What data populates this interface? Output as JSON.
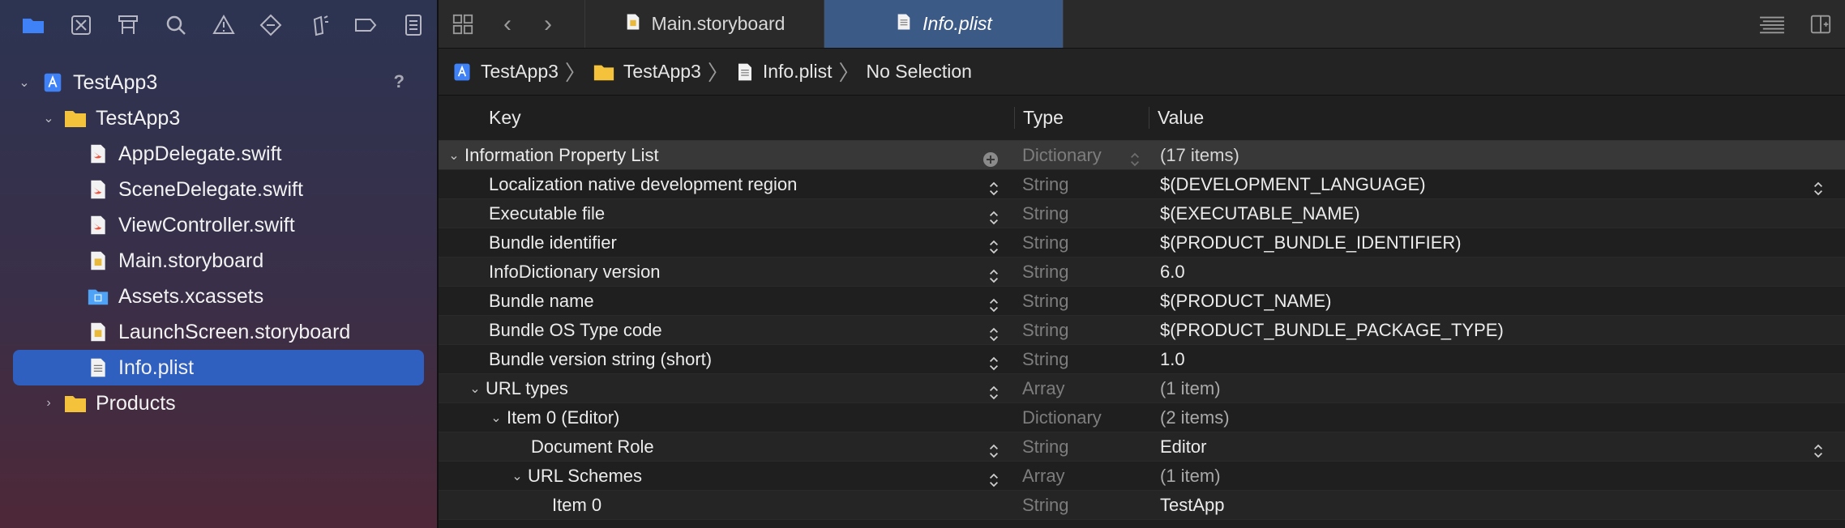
{
  "navigator": {
    "toolbar_icons": [
      "folder-icon",
      "source-control-icon",
      "hierarchy-icon",
      "search-icon",
      "warning-icon",
      "test-icon",
      "debug-icon",
      "breakpoint-icon",
      "report-icon"
    ],
    "help": "?",
    "tree": [
      {
        "label": "TestApp3",
        "icon": "project-icon",
        "level": 0,
        "expanded": true
      },
      {
        "label": "TestApp3",
        "icon": "folder-icon",
        "level": 1,
        "expanded": true
      },
      {
        "label": "AppDelegate.swift",
        "icon": "swift-file-icon",
        "level": 2
      },
      {
        "label": "SceneDelegate.swift",
        "icon": "swift-file-icon",
        "level": 2
      },
      {
        "label": "ViewController.swift",
        "icon": "swift-file-icon",
        "level": 2
      },
      {
        "label": "Main.storyboard",
        "icon": "storyboard-file-icon",
        "level": 2
      },
      {
        "label": "Assets.xcassets",
        "icon": "assets-folder-icon",
        "level": 2
      },
      {
        "label": "LaunchScreen.storyboard",
        "icon": "storyboard-file-icon",
        "level": 2
      },
      {
        "label": "Info.plist",
        "icon": "plist-file-icon",
        "level": 2,
        "selected": true
      },
      {
        "label": "Products",
        "icon": "folder-icon",
        "level": 1,
        "expanded": false
      }
    ]
  },
  "tabs": [
    {
      "label": "Main.storyboard",
      "icon": "storyboard-file-icon",
      "active": false
    },
    {
      "label": "Info.plist",
      "icon": "plist-file-icon",
      "active": true
    }
  ],
  "jumpbar": {
    "crumbs": [
      {
        "label": "TestApp3",
        "icon": "project-icon"
      },
      {
        "label": "TestApp3",
        "icon": "folder-icon"
      },
      {
        "label": "Info.plist",
        "icon": "plist-file-icon"
      },
      {
        "label": "No Selection",
        "icon": ""
      }
    ]
  },
  "plist": {
    "headers": {
      "key": "Key",
      "type": "Type",
      "value": "Value"
    },
    "rows": [
      {
        "key": "Information Property List",
        "type": "Dictionary",
        "value": "(17 items)",
        "level": 0,
        "chev": "down",
        "root": true
      },
      {
        "key": "Localization native development region",
        "type": "String",
        "value": "$(DEVELOPMENT_LANGUAGE)",
        "level": 1,
        "valstepper": true
      },
      {
        "key": "Executable file",
        "type": "String",
        "value": "$(EXECUTABLE_NAME)",
        "level": 1
      },
      {
        "key": "Bundle identifier",
        "type": "String",
        "value": "$(PRODUCT_BUNDLE_IDENTIFIER)",
        "level": 1
      },
      {
        "key": "InfoDictionary version",
        "type": "String",
        "value": "6.0",
        "level": 1
      },
      {
        "key": "Bundle name",
        "type": "String",
        "value": "$(PRODUCT_NAME)",
        "level": 1
      },
      {
        "key": "Bundle OS Type code",
        "type": "String",
        "value": "$(PRODUCT_BUNDLE_PACKAGE_TYPE)",
        "level": 1
      },
      {
        "key": "Bundle version string (short)",
        "type": "String",
        "value": "1.0",
        "level": 1
      },
      {
        "key": "URL types",
        "type": "Array",
        "value": "(1 item)",
        "level": 1,
        "chev": "down",
        "muted": true
      },
      {
        "key": "Item 0 (Editor)",
        "type": "Dictionary",
        "value": "(2 items)",
        "level": 2,
        "chev": "down",
        "muted": true,
        "nostepper": true
      },
      {
        "key": "Document Role",
        "type": "String",
        "value": "Editor",
        "level": 3,
        "valstepper": true
      },
      {
        "key": "URL Schemes",
        "type": "Array",
        "value": "(1 item)",
        "level": 3,
        "chev": "down",
        "muted": true
      },
      {
        "key": "Item 0",
        "type": "String",
        "value": "TestApp",
        "level": 4,
        "nostepper": true
      }
    ]
  }
}
